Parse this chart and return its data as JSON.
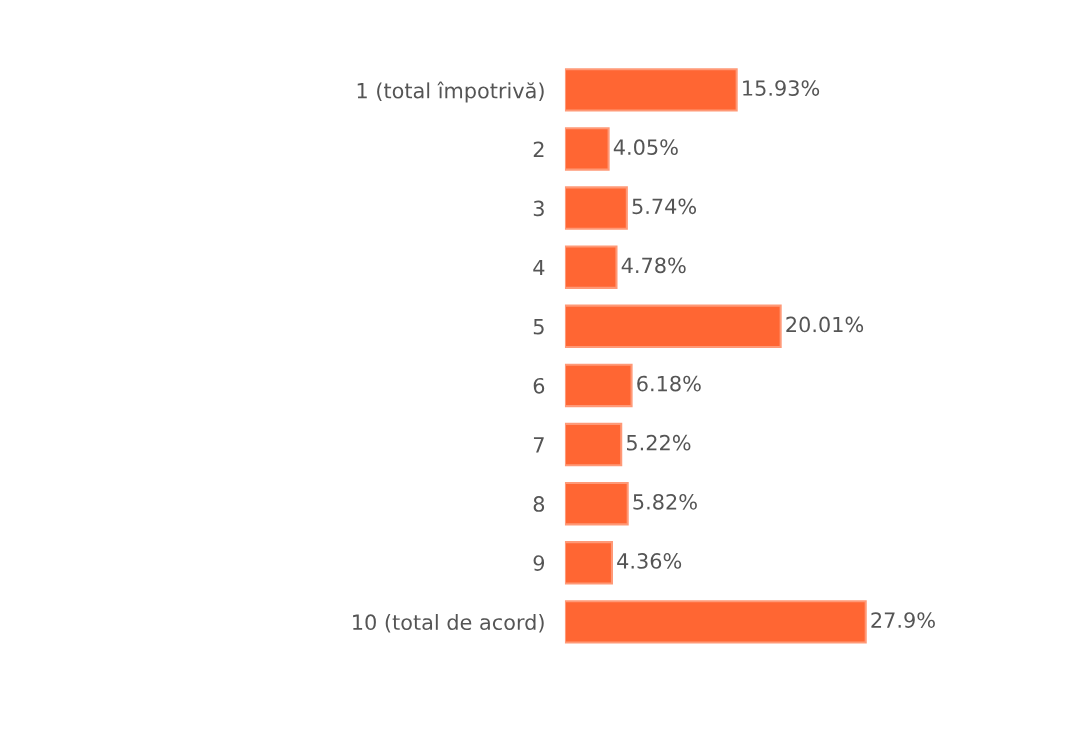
{
  "chart_data": {
    "type": "bar",
    "orientation": "horizontal",
    "categories": [
      "1 (total împotrivă)",
      "2",
      "3",
      "4",
      "5",
      "6",
      "7",
      "8",
      "9",
      "10 (total de acord)"
    ],
    "values": [
      15.93,
      4.05,
      5.74,
      4.78,
      20.01,
      6.18,
      5.22,
      5.82,
      4.36,
      27.9
    ],
    "value_labels": [
      "15.93%",
      "4.05%",
      "5.74%",
      "4.78%",
      "20.01%",
      "6.18%",
      "5.22%",
      "5.82%",
      "4.36%",
      "27.9%"
    ],
    "color": "#ff6633",
    "grid": false,
    "legend": false
  }
}
